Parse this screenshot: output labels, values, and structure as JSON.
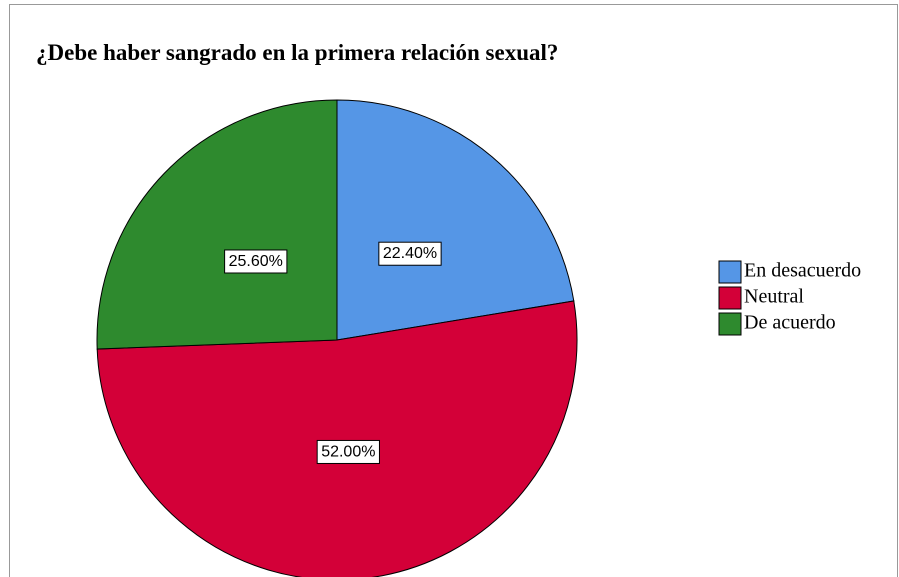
{
  "chart_data": {
    "type": "pie",
    "title": "¿Debe haber sangrado en la primera relación sexual?",
    "categories": [
      "En desacuerdo",
      "Neutral",
      "De acuerdo"
    ],
    "values": [
      22.4,
      52.0,
      25.6
    ],
    "value_labels": [
      "22.40%",
      "52.00%",
      "25.60%"
    ],
    "colors": [
      "#5596e6",
      "#d30038",
      "#2e8a2e"
    ],
    "legend": "right"
  }
}
